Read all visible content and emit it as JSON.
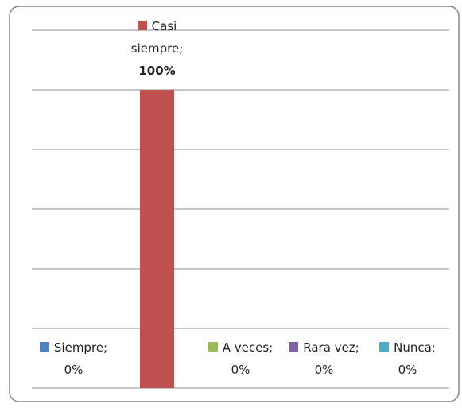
{
  "chart_data": {
    "type": "bar",
    "categories": [
      "Siempre;",
      "Casi siempre;",
      "A veces;",
      "Rara vez;",
      "Nunca;"
    ],
    "values": [
      0,
      100,
      0,
      0,
      0
    ],
    "value_labels": [
      "0%",
      "100%",
      "0%",
      "0%",
      "0%"
    ],
    "colors": [
      "#4f81bd",
      "#c0504d",
      "#9bbb59",
      "#8064a2",
      "#4bacc6"
    ],
    "ylim": [
      0,
      120
    ],
    "yticks": [
      0,
      20,
      40,
      60,
      80,
      100,
      120
    ],
    "grid": true
  }
}
